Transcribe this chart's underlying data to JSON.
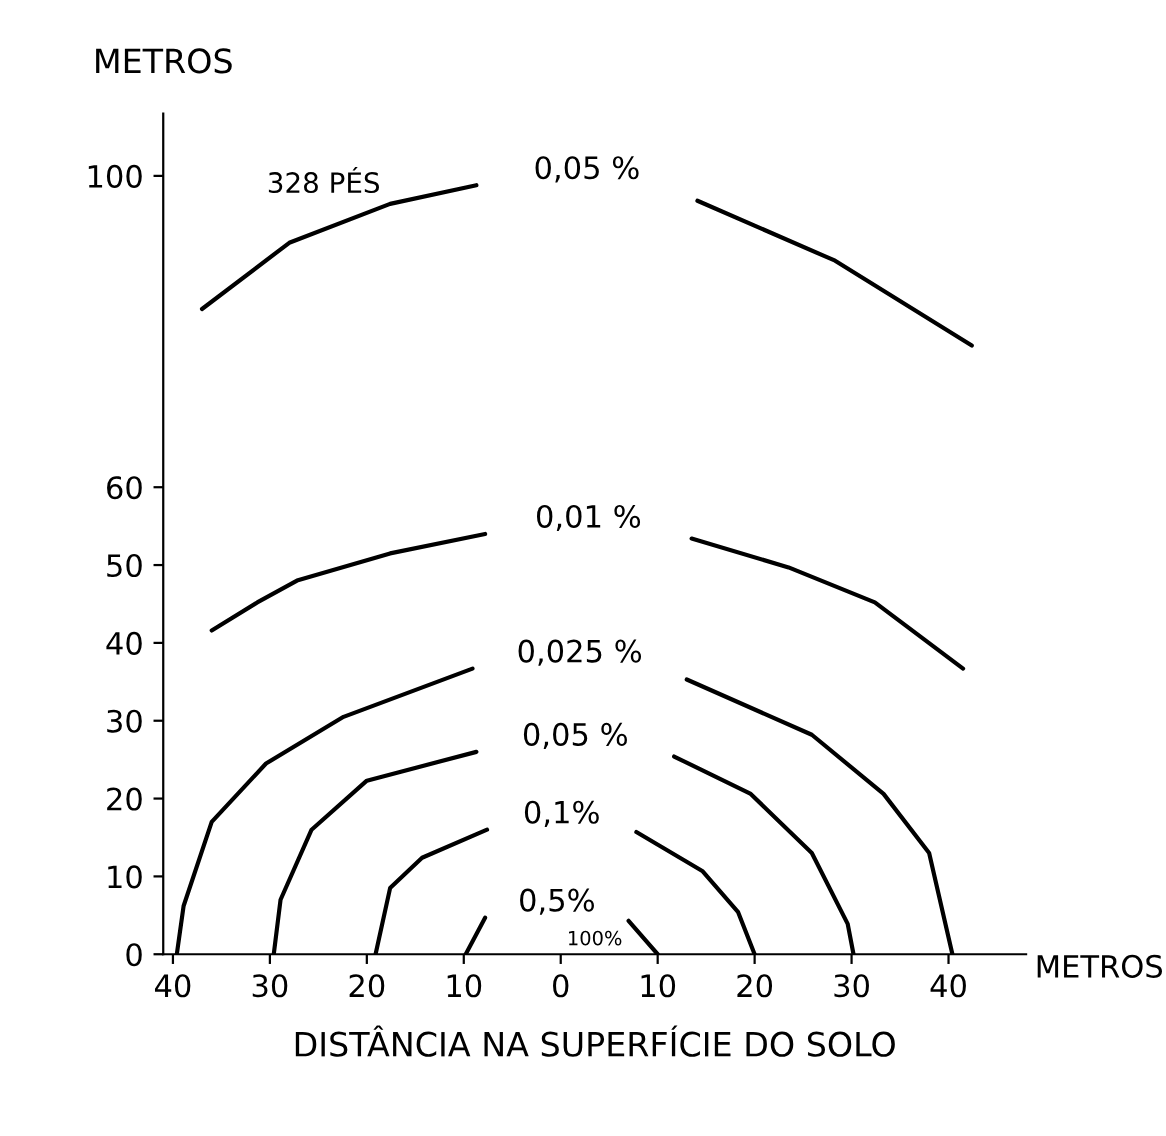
{
  "chart_data": {
    "type": "line",
    "ylabel": "METROS",
    "xlabel": "DISTÂNCIA NA SUPERFÍCIE DO SOLO",
    "xlim": [
      -41,
      48
    ],
    "ylim": [
      0,
      108
    ],
    "xticks": [
      {
        "value": -40,
        "label": "40"
      },
      {
        "value": -30,
        "label": "30"
      },
      {
        "value": -20,
        "label": "20"
      },
      {
        "value": -10,
        "label": "10"
      },
      0,
      10,
      20,
      30,
      40
    ],
    "yticks": [
      0,
      10,
      20,
      30,
      40,
      50,
      60,
      100
    ],
    "grid": false,
    "legend": false,
    "marker": "none",
    "line_style": "solid",
    "series": [
      {
        "name": "0,5%",
        "color": "#000000",
        "x": [
          -9.8,
          -7.8,
          0,
          7,
          10
        ],
        "values": [
          0,
          4.7,
          null,
          4.3,
          0
        ]
      },
      {
        "name": "0,1%",
        "color": "#000000",
        "x": [
          -19.1,
          -17.6,
          -14.3,
          -7.6,
          0,
          7.8,
          14.6,
          18.3,
          20
        ],
        "values": [
          0,
          8.5,
          12.4,
          16,
          null,
          15.7,
          10.7,
          5.4,
          0
        ]
      },
      {
        "name": "0,05 %",
        "color": "#000000",
        "x": [
          -29.6,
          -28.9,
          -25.7,
          -20,
          -8.7,
          0,
          11.7,
          19.6,
          25.9,
          29.6,
          30.2
        ],
        "values": [
          0,
          7,
          16,
          22.3,
          26,
          null,
          25.4,
          20.6,
          13,
          3.9,
          0
        ]
      },
      {
        "name": "0,025 %",
        "color": "#000000",
        "x": [
          -39.6,
          -38.9,
          -36,
          -30.4,
          -22.4,
          -9.1,
          0,
          13,
          25.9,
          33.3,
          38,
          40.4
        ],
        "values": [
          0,
          6.2,
          17,
          24.5,
          30.5,
          36.7,
          null,
          35.3,
          28.2,
          20.6,
          13,
          0
        ]
      },
      {
        "name": "0,01 %",
        "color": "#000000",
        "x": [
          -36,
          -31.3,
          -27.2,
          -17.6,
          -7.8,
          0,
          13.5,
          23.5,
          32.4,
          41.5
        ],
        "values": [
          41.6,
          45.2,
          48,
          51.5,
          54,
          null,
          53.4,
          49.7,
          45.2,
          36.7
        ]
      },
      {
        "name": "0,05 %",
        "color": "#000000",
        "x": [
          -37,
          -28,
          -17.6,
          -8.7,
          0,
          14.1,
          28.3,
          42.4
        ],
        "values": [
          82.9,
          91.4,
          96.4,
          98.8,
          null,
          96.8,
          89.1,
          78.2
        ]
      }
    ],
    "annotations": [
      "100%",
      "328 PÉS",
      "METROS"
    ]
  }
}
